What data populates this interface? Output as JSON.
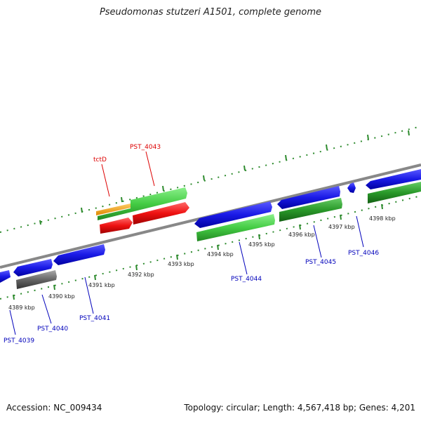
{
  "title": "Pseudomonas stutzeri A1501, complete genome",
  "footer": {
    "accession": "Accession: NC_009434",
    "topology": "Topology: circular; Length: 4,567,418 bp; Genes: 4,201"
  },
  "scale_labels": [
    "4389 kbp",
    "4390 kbp",
    "4391 kbp",
    "4392 kbp",
    "4393 kbp",
    "4394 kbp",
    "4395 kbp",
    "4396 kbp",
    "4397 kbp",
    "4398 kbp"
  ],
  "gene_labels": {
    "tctD": "tctD",
    "pst4043": "PST_4043",
    "pst4039": "PST_4039",
    "pst4040": "PST_4040",
    "pst4041": "PST_4041",
    "pst4044": "PST_4044",
    "pst4045": "PST_4045",
    "pst4046": "PST_4046"
  },
  "colors": {
    "backbone": "#8c8c8c",
    "cds_blue": "#1a1ae6",
    "rna_green": "#44cc44",
    "gene_red": "#ee1111",
    "gene_gray": "#666666",
    "gene_orange": "#ee9911",
    "tick_green": "#2e8b2e",
    "label_red": "#dd0000",
    "label_blue": "#0000bb"
  }
}
